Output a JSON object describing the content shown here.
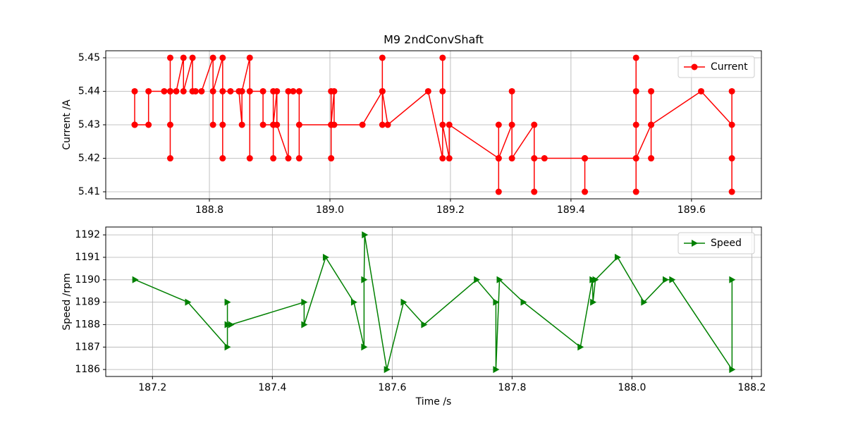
{
  "chart_data": [
    {
      "type": "line",
      "title": "M9 2ndConvShaft",
      "ylabel": "Current /A",
      "grid": true,
      "legend": "upper right",
      "x": [
        188.676,
        188.676,
        188.676,
        188.699,
        188.699,
        188.725,
        188.735,
        188.735,
        188.735,
        188.735,
        188.735,
        188.745,
        188.757,
        188.757,
        188.772,
        188.772,
        188.777,
        188.787,
        188.806,
        188.806,
        188.806,
        188.822,
        188.822,
        188.822,
        188.822,
        188.835,
        188.849,
        188.854,
        188.854,
        188.867,
        188.867,
        188.867,
        188.889,
        188.889,
        188.906,
        188.906,
        188.906,
        188.906,
        188.912,
        188.912,
        188.931,
        188.931,
        188.939,
        188.949,
        188.949,
        188.949,
        189.002,
        189.002,
        189.002,
        189.002,
        189.007,
        189.007,
        189.054,
        189.087,
        189.087,
        189.087,
        189.087,
        189.096,
        189.163,
        189.187,
        189.187,
        189.187,
        189.187,
        189.198,
        189.198,
        189.28,
        189.28,
        189.28,
        189.28,
        189.302,
        189.302,
        189.302,
        189.339,
        189.339,
        189.339,
        189.356,
        189.423,
        189.423,
        189.423,
        189.508,
        189.508,
        189.508,
        189.508,
        189.508,
        189.508,
        189.533,
        189.533,
        189.533,
        189.533,
        189.616,
        189.667,
        189.667,
        189.667,
        189.667
      ],
      "series": [
        {
          "name": "Current",
          "color": "#ff0000",
          "marker": "circle",
          "values": [
            5.43,
            5.44,
            5.43,
            5.43,
            5.44,
            5.44,
            5.44,
            5.45,
            5.42,
            5.43,
            5.44,
            5.44,
            5.45,
            5.44,
            5.45,
            5.44,
            5.44,
            5.44,
            5.45,
            5.43,
            5.44,
            5.45,
            5.42,
            5.43,
            5.44,
            5.44,
            5.44,
            5.43,
            5.44,
            5.45,
            5.42,
            5.44,
            5.44,
            5.43,
            5.43,
            5.44,
            5.42,
            5.43,
            5.44,
            5.43,
            5.42,
            5.44,
            5.44,
            5.44,
            5.42,
            5.43,
            5.43,
            5.44,
            5.42,
            5.43,
            5.44,
            5.43,
            5.43,
            5.44,
            5.45,
            5.43,
            5.44,
            5.43,
            5.44,
            5.42,
            5.45,
            5.44,
            5.43,
            5.42,
            5.43,
            5.42,
            5.41,
            5.43,
            5.42,
            5.43,
            5.44,
            5.42,
            5.43,
            5.41,
            5.42,
            5.42,
            5.42,
            5.41,
            5.42,
            5.42,
            5.45,
            5.41,
            5.43,
            5.44,
            5.42,
            5.43,
            5.44,
            5.42,
            5.43,
            5.44,
            5.43,
            5.41,
            5.44,
            5.42
          ]
        }
      ],
      "xlim": [
        188.628,
        189.716
      ],
      "xticks": [
        188.8,
        {
          "value": 189,
          "label": "189.0"
        },
        189.2,
        189.4,
        189.6
      ],
      "ylim": [
        5.4079,
        5.4521
      ],
      "yticks": [
        5.41,
        5.42,
        5.43,
        5.44,
        5.45
      ]
    },
    {
      "type": "line",
      "xlabel": "Time /s",
      "ylabel": "Speed /rpm",
      "grid": true,
      "legend": "upper right",
      "x": [
        187.171,
        187.259,
        187.325,
        187.325,
        187.325,
        187.331,
        187.453,
        187.453,
        187.489,
        187.536,
        187.553,
        187.553,
        187.554,
        187.591,
        187.619,
        187.653,
        187.741,
        187.773,
        187.773,
        187.779,
        187.819,
        187.914,
        187.934,
        187.935,
        187.939,
        187.976,
        188.02,
        188.056,
        188.067,
        188.167,
        188.167
      ],
      "series": [
        {
          "name": "Speed",
          "color": "#008000",
          "marker": "triangle-right",
          "values": [
            1190,
            1189,
            1187,
            1189,
            1188,
            1188,
            1189,
            1188,
            1191,
            1189,
            1187,
            1190,
            1192,
            1186,
            1189,
            1188,
            1190,
            1189,
            1186,
            1190,
            1189,
            1187,
            1190,
            1189,
            1190,
            1191,
            1189,
            1190,
            1190,
            1186,
            1190
          ]
        }
      ],
      "xlim": [
        187.122,
        188.216
      ],
      "xticks": [
        187.2,
        187.4,
        187.6,
        187.8,
        {
          "value": 188,
          "label": "188.0"
        },
        188.2
      ],
      "ylim": [
        1185.69,
        1192.35
      ],
      "yticks": [
        1186,
        1187,
        1188,
        1189,
        1190,
        1191,
        1192
      ]
    }
  ]
}
